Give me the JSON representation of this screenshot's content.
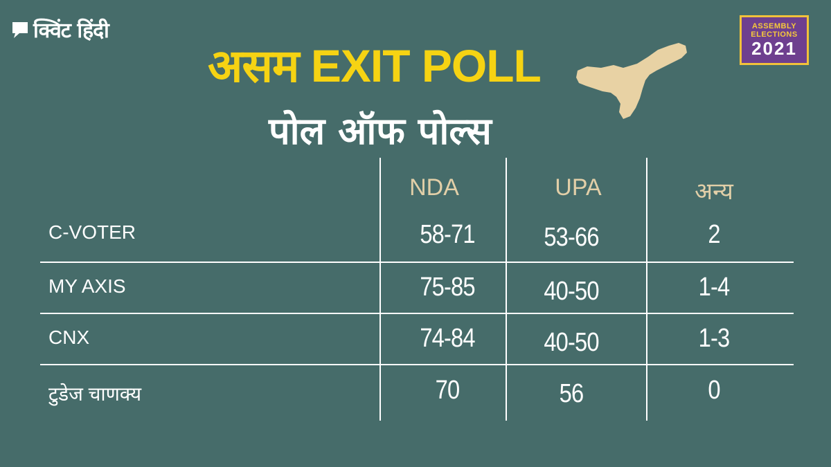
{
  "brand": {
    "logo_text": "क्विंट हिंदी"
  },
  "badge": {
    "line1": "ASSEMBLY",
    "line2": "ELECTIONS",
    "year": "2021"
  },
  "header": {
    "title": "असम EXIT POLL",
    "subtitle": "पोल ऑफ पोल्स"
  },
  "colors": {
    "background": "#466c6a",
    "title": "#f6d313",
    "column_header": "#e2cfa8",
    "badge_bg": "#6e3f8f",
    "badge_border": "#f2c23a"
  },
  "table": {
    "columns": [
      "NDA",
      "UPA",
      "अन्य"
    ],
    "rows": [
      {
        "label": "C-VOTER",
        "values": [
          "58-71",
          "53-66",
          "2"
        ]
      },
      {
        "label": "MY AXIS",
        "values": [
          "75-85",
          "40-50",
          "1-4"
        ]
      },
      {
        "label": "CNX",
        "values": [
          "74-84",
          "40-50",
          "1-3"
        ]
      },
      {
        "label": "टुडेज चाणक्य",
        "values": [
          "70",
          "56",
          "0"
        ]
      }
    ]
  }
}
